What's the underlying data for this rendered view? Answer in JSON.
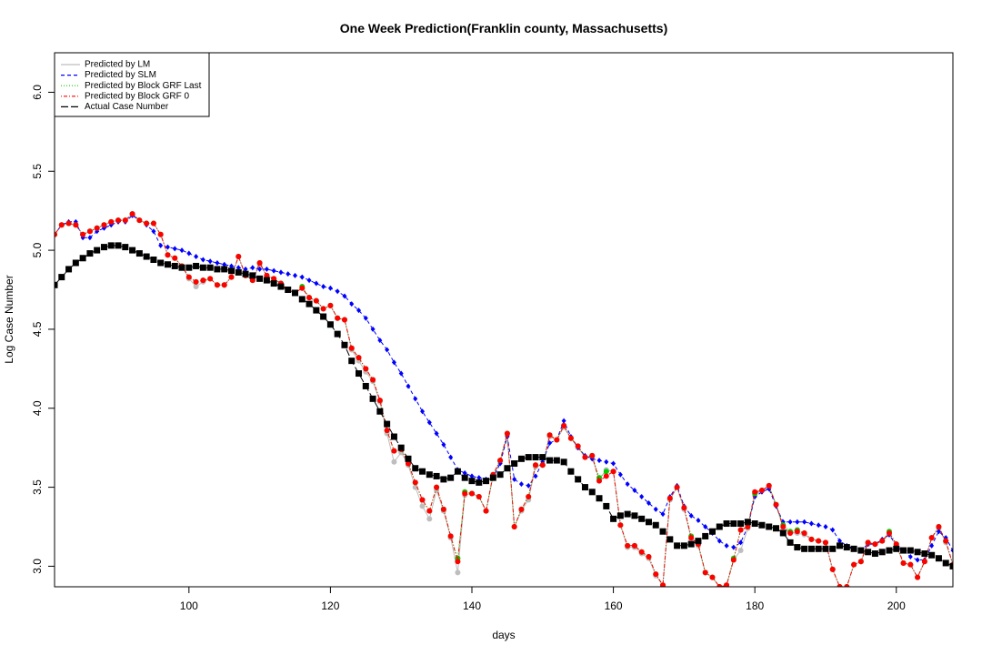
{
  "chart_data": {
    "type": "line",
    "title": "One Week Prediction(Franklin county, Massachusetts)",
    "xlabel": "days",
    "ylabel": "Log Case Number",
    "legend": "top-left",
    "xlim": [
      81,
      208
    ],
    "ylim": [
      2.87,
      6.25
    ],
    "xticks": [
      100,
      120,
      140,
      160,
      180,
      200
    ],
    "yticks": [
      {
        "value": 3,
        "label": "3.0"
      },
      3.5,
      {
        "value": 4,
        "label": "4.0"
      },
      4.5,
      {
        "value": 5,
        "label": "5.0"
      },
      5.5,
      {
        "value": 6,
        "label": "6.0"
      }
    ],
    "x": [
      81,
      82,
      83,
      84,
      85,
      86,
      87,
      88,
      89,
      90,
      91,
      92,
      93,
      94,
      95,
      96,
      97,
      98,
      99,
      100,
      101,
      102,
      103,
      104,
      105,
      106,
      107,
      108,
      109,
      110,
      111,
      112,
      113,
      114,
      115,
      116,
      117,
      118,
      119,
      120,
      121,
      122,
      123,
      124,
      125,
      126,
      127,
      128,
      129,
      130,
      131,
      132,
      133,
      134,
      135,
      136,
      137,
      138,
      139,
      140,
      141,
      142,
      143,
      144,
      145,
      146,
      147,
      148,
      149,
      150,
      151,
      152,
      153,
      154,
      155,
      156,
      157,
      158,
      159,
      160,
      161,
      162,
      163,
      164,
      165,
      166,
      167,
      168,
      169,
      170,
      171,
      172,
      173,
      174,
      175,
      176,
      177,
      178,
      179,
      180,
      181,
      182,
      183,
      184,
      185,
      186,
      187,
      188,
      189,
      190,
      191,
      192,
      193,
      194,
      195,
      196,
      197,
      198,
      199,
      200,
      201,
      202,
      203,
      204,
      205,
      206,
      207,
      208
    ],
    "series": [
      {
        "name": "Predicted by LM",
        "color": "#bebebe",
        "dash": "solid",
        "marker": "circle",
        "values": [
          5.1,
          5.16,
          5.17,
          5.16,
          5.1,
          5.12,
          5.14,
          5.16,
          5.18,
          5.19,
          5.19,
          5.23,
          5.19,
          5.17,
          5.17,
          5.1,
          4.97,
          4.95,
          4.9,
          4.82,
          4.77,
          4.8,
          4.82,
          4.78,
          4.78,
          4.83,
          4.96,
          4.84,
          4.81,
          4.91,
          4.84,
          4.82,
          4.79,
          4.75,
          4.73,
          4.76,
          4.7,
          4.68,
          4.63,
          4.65,
          4.57,
          4.56,
          4.37,
          4.3,
          4.23,
          4.17,
          4.04,
          3.84,
          3.66,
          3.72,
          3.64,
          3.5,
          3.38,
          3.3,
          3.48,
          3.35,
          3.18,
          2.96,
          3.45,
          3.46,
          3.44,
          3.35,
          3.57,
          3.66,
          3.83,
          3.25,
          3.35,
          3.42,
          3.63,
          3.64,
          3.82,
          3.8,
          3.88,
          3.81,
          3.75,
          3.69,
          3.69,
          3.55,
          3.61,
          3.6,
          3.26,
          3.12,
          3.12,
          3.08,
          3.05,
          2.94,
          2.88,
          3.42,
          3.5,
          3.36,
          3.17,
          3.13,
          2.96,
          2.93,
          2.87,
          2.88,
          3.04,
          3.1,
          3.24,
          3.45,
          3.48,
          3.5,
          3.39,
          3.24,
          3.21,
          3.21,
          3.2,
          3.17,
          3.16,
          3.15,
          2.98,
          2.87,
          2.87,
          3.01,
          3.03,
          3.14,
          3.14,
          3.16,
          3.2,
          3.13,
          3.02,
          3.01,
          2.93,
          3.03,
          3.18,
          3.24,
          3.15,
          3.01
        ]
      },
      {
        "name": "Predicted by SLM",
        "color": "#0000ff",
        "dash": "dashed",
        "marker": "diamond",
        "values": [
          5.1,
          5.16,
          5.18,
          5.18,
          5.08,
          5.08,
          5.12,
          5.14,
          5.16,
          5.18,
          5.18,
          5.22,
          5.19,
          5.16,
          5.12,
          5.03,
          5.02,
          5.01,
          5.0,
          4.98,
          4.96,
          4.94,
          4.93,
          4.92,
          4.91,
          4.9,
          4.89,
          4.88,
          4.89,
          4.88,
          4.88,
          4.87,
          4.86,
          4.85,
          4.84,
          4.83,
          4.81,
          4.79,
          4.77,
          4.76,
          4.74,
          4.71,
          4.66,
          4.62,
          4.57,
          4.5,
          4.43,
          4.37,
          4.29,
          4.22,
          4.14,
          4.06,
          3.98,
          3.91,
          3.84,
          3.77,
          3.69,
          3.61,
          3.59,
          3.57,
          3.56,
          3.55,
          3.56,
          3.65,
          3.82,
          3.55,
          3.52,
          3.51,
          3.57,
          3.66,
          3.78,
          3.8,
          3.92,
          3.82,
          3.75,
          3.7,
          3.68,
          3.67,
          3.66,
          3.65,
          3.58,
          3.52,
          3.48,
          3.44,
          3.4,
          3.36,
          3.33,
          3.44,
          3.51,
          3.38,
          3.32,
          3.29,
          3.25,
          3.21,
          3.16,
          3.13,
          3.12,
          3.15,
          3.25,
          3.44,
          3.47,
          3.49,
          3.38,
          3.28,
          3.28,
          3.28,
          3.28,
          3.27,
          3.26,
          3.25,
          3.23,
          3.16,
          3.13,
          3.11,
          3.1,
          3.14,
          3.14,
          3.17,
          3.2,
          3.13,
          3.1,
          3.06,
          3.04,
          3.04,
          3.13,
          3.22,
          3.18,
          3.1
        ]
      },
      {
        "name": "Predicted by Block GRF Last",
        "color": "#00cd00",
        "dash": "dotted",
        "marker": "circle",
        "values": [
          5.1,
          5.16,
          5.17,
          5.16,
          5.1,
          5.12,
          5.14,
          5.16,
          5.18,
          5.19,
          5.19,
          5.23,
          5.19,
          5.17,
          5.17,
          5.1,
          4.97,
          4.95,
          4.9,
          4.83,
          4.8,
          4.81,
          4.82,
          4.78,
          4.78,
          4.83,
          4.96,
          4.84,
          4.81,
          4.92,
          4.84,
          4.82,
          4.79,
          4.75,
          4.73,
          4.77,
          4.7,
          4.68,
          4.63,
          4.65,
          4.57,
          4.56,
          4.38,
          4.32,
          4.25,
          4.18,
          4.05,
          3.86,
          3.73,
          3.74,
          3.65,
          3.53,
          3.42,
          3.35,
          3.5,
          3.36,
          3.19,
          3.05,
          3.47,
          3.46,
          3.44,
          3.35,
          3.58,
          3.67,
          3.84,
          3.25,
          3.36,
          3.44,
          3.64,
          3.64,
          3.83,
          3.8,
          3.89,
          3.81,
          3.76,
          3.69,
          3.7,
          3.56,
          3.6,
          3.6,
          3.26,
          3.13,
          3.13,
          3.09,
          3.06,
          2.95,
          2.88,
          3.43,
          3.5,
          3.37,
          3.19,
          3.14,
          2.96,
          2.93,
          2.87,
          2.88,
          3.05,
          3.23,
          3.25,
          3.46,
          3.48,
          3.51,
          3.39,
          3.26,
          3.22,
          3.23,
          3.21,
          3.17,
          3.16,
          3.15,
          2.98,
          2.87,
          2.87,
          3.01,
          3.03,
          3.15,
          3.14,
          3.16,
          3.22,
          3.14,
          3.02,
          3.01,
          2.93,
          3.03,
          3.18,
          3.25,
          3.16,
          3.01
        ]
      },
      {
        "name": "Predicted by Block GRF 0",
        "color": "#ff0000",
        "dash": "dashdot",
        "marker": "circle",
        "values": [
          5.1,
          5.16,
          5.17,
          5.16,
          5.1,
          5.12,
          5.14,
          5.16,
          5.18,
          5.19,
          5.19,
          5.23,
          5.19,
          5.17,
          5.17,
          5.1,
          4.97,
          4.95,
          4.9,
          4.83,
          4.8,
          4.81,
          4.82,
          4.78,
          4.78,
          4.83,
          4.96,
          4.84,
          4.81,
          4.92,
          4.84,
          4.82,
          4.79,
          4.75,
          4.73,
          4.76,
          4.7,
          4.68,
          4.63,
          4.65,
          4.57,
          4.56,
          4.38,
          4.32,
          4.25,
          4.18,
          4.05,
          3.86,
          3.73,
          3.74,
          3.65,
          3.53,
          3.42,
          3.35,
          3.5,
          3.36,
          3.19,
          3.03,
          3.46,
          3.46,
          3.44,
          3.35,
          3.58,
          3.67,
          3.84,
          3.25,
          3.36,
          3.44,
          3.64,
          3.64,
          3.83,
          3.8,
          3.89,
          3.81,
          3.76,
          3.69,
          3.7,
          3.54,
          3.57,
          3.6,
          3.26,
          3.13,
          3.13,
          3.09,
          3.06,
          2.95,
          2.88,
          3.43,
          3.5,
          3.37,
          3.18,
          3.14,
          2.96,
          2.93,
          2.87,
          2.88,
          3.04,
          3.23,
          3.25,
          3.47,
          3.48,
          3.51,
          3.39,
          3.25,
          3.21,
          3.22,
          3.21,
          3.17,
          3.16,
          3.15,
          2.98,
          2.87,
          2.87,
          3.01,
          3.03,
          3.15,
          3.14,
          3.16,
          3.21,
          3.14,
          3.02,
          3.01,
          2.93,
          3.03,
          3.18,
          3.25,
          3.16,
          3.01
        ]
      },
      {
        "name": "Actual Case Number",
        "color": "#000000",
        "dash": "longdash",
        "marker": "square",
        "values": [
          4.78,
          4.83,
          4.88,
          4.92,
          4.95,
          4.98,
          5.0,
          5.02,
          5.03,
          5.03,
          5.02,
          5.0,
          4.98,
          4.96,
          4.94,
          4.92,
          4.91,
          4.9,
          4.89,
          4.89,
          4.9,
          4.89,
          4.89,
          4.88,
          4.88,
          4.87,
          4.86,
          4.85,
          4.84,
          4.82,
          4.81,
          4.79,
          4.77,
          4.75,
          4.73,
          4.69,
          4.66,
          4.62,
          4.58,
          4.53,
          4.47,
          4.4,
          4.3,
          4.22,
          4.14,
          4.06,
          3.98,
          3.9,
          3.82,
          3.75,
          3.68,
          3.62,
          3.6,
          3.58,
          3.57,
          3.55,
          3.56,
          3.6,
          3.56,
          3.54,
          3.53,
          3.54,
          3.56,
          3.58,
          3.62,
          3.65,
          3.68,
          3.69,
          3.69,
          3.69,
          3.67,
          3.67,
          3.66,
          3.6,
          3.55,
          3.5,
          3.47,
          3.43,
          3.38,
          3.3,
          3.32,
          3.33,
          3.32,
          3.3,
          3.28,
          3.26,
          3.22,
          3.17,
          3.13,
          3.13,
          3.14,
          3.16,
          3.19,
          3.22,
          3.25,
          3.27,
          3.27,
          3.27,
          3.28,
          3.27,
          3.26,
          3.25,
          3.24,
          3.21,
          3.15,
          3.12,
          3.11,
          3.11,
          3.11,
          3.11,
          3.11,
          3.13,
          3.12,
          3.11,
          3.1,
          3.09,
          3.08,
          3.09,
          3.1,
          3.11,
          3.1,
          3.1,
          3.09,
          3.08,
          3.07,
          3.05,
          3.02,
          3.0
        ]
      }
    ]
  }
}
